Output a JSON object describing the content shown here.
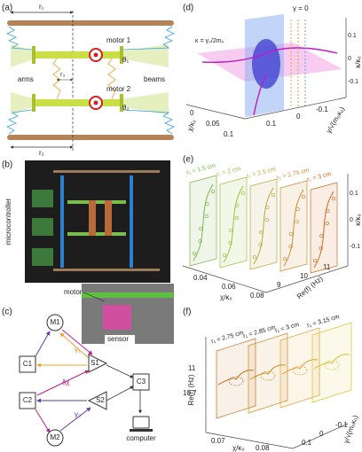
{
  "panel_a": {
    "label": "(a)",
    "r1": "r₁",
    "r2": "r₂",
    "r3": "r₃",
    "motor1": "motor 1",
    "motor2": "motor 2",
    "theta1": "θ₁",
    "theta2": "θ₂",
    "arms": "arms",
    "beams": "beams"
  },
  "panel_b": {
    "label": "(b)",
    "microcontroller": "microcontroller",
    "motor": "motor",
    "sensor": "sensor"
  },
  "panel_c": {
    "label": "(c)",
    "nodes": [
      "M1",
      "C1",
      "S1",
      "C3",
      "C2",
      "S2",
      "M2"
    ],
    "gamma1": "γ₁",
    "gamma2": "γ₂",
    "delta_chi": "δχ",
    "computer": "computer"
  },
  "panel_d": {
    "label": "(d)",
    "gamma_zero": "γ = 0",
    "kappa_eq": "κ = γ₀/2m₀",
    "x_axis": "χ/κ₀",
    "y_axis": "γ/√(m₀κ₀)",
    "z_axis": "κ/κ₀",
    "x_ticks": [
      "0",
      "0.05",
      "0.1"
    ],
    "y_ticks": [
      "0.1",
      "0",
      "-0.1"
    ],
    "z_ticks": [
      "0.1",
      "0",
      "-0.1"
    ]
  },
  "panel_e": {
    "label": "(e)",
    "curves": [
      "r₁ = 1.5 cm",
      "r₁ = 2 cm",
      "r₁ = 2.5 cm",
      "r₁ = 2.75 cm",
      "r₁ = 3 cm"
    ],
    "x_axis": "χ/κ₀",
    "y_axis": "Re(f) (Hz)",
    "z_axis": "κ/κ₀",
    "x_ticks": [
      "0.04",
      "0.06",
      "0.08"
    ],
    "y_ticks": [
      "9",
      "10",
      "11"
    ],
    "z_ticks": [
      "0.1",
      "0",
      "-0.1"
    ]
  },
  "panel_f": {
    "label": "(f)",
    "curves": [
      "r₁ = 2.75 cm",
      "r₁ = 2.85 cm",
      "r₁ = 3 cm",
      "r₁ = 3.15 cm"
    ],
    "z_axis": "Re(f) (Hz)",
    "z_ticks": [
      "11",
      "10.7"
    ],
    "x_axis": "χ/κ₀",
    "x_ticks": [
      "0.07",
      "0.08"
    ],
    "y_axis": "γ/√(m₀κ₀)",
    "y_ticks": [
      "0.1",
      "0",
      "-0.1"
    ]
  }
}
